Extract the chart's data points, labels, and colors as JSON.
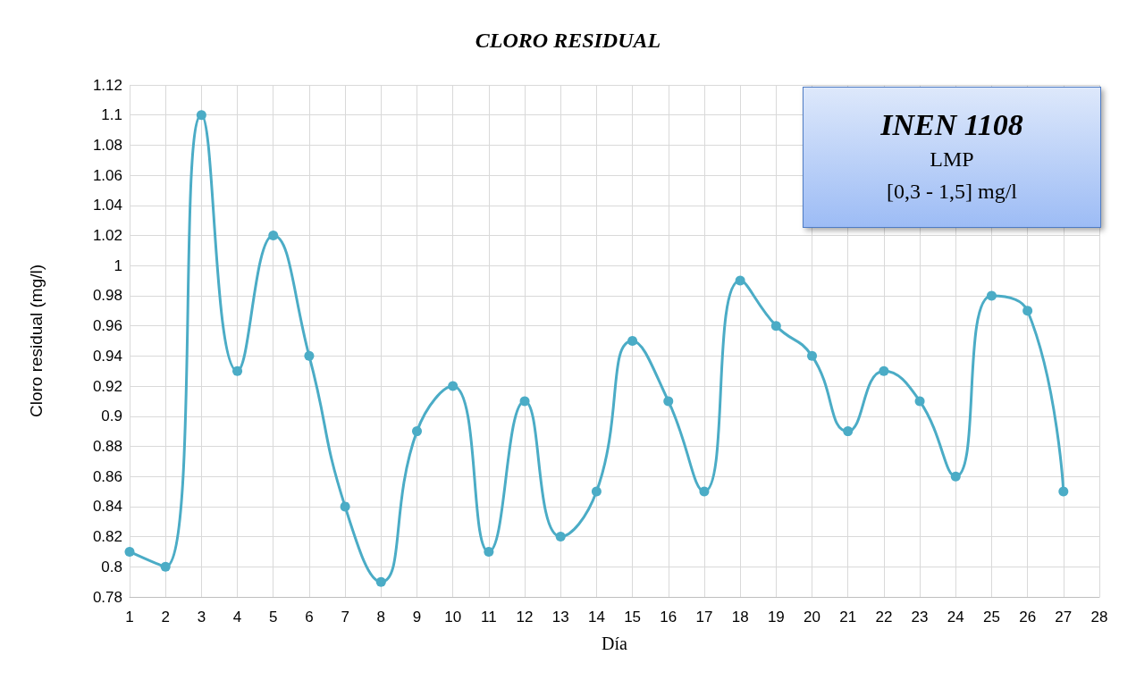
{
  "chart_data": {
    "type": "line",
    "title": "CLORO RESIDUAL",
    "xlabel": "Día",
    "ylabel": "Cloro residual (mg/l)",
    "x": [
      1,
      2,
      3,
      4,
      5,
      6,
      7,
      8,
      9,
      10,
      11,
      12,
      13,
      14,
      15,
      16,
      17,
      18,
      19,
      20,
      21,
      22,
      23,
      24,
      25,
      26,
      27
    ],
    "series": [
      {
        "color": "#4bacc6",
        "values": [
          0.81,
          0.8,
          1.1,
          0.93,
          1.02,
          0.94,
          0.84,
          0.79,
          0.89,
          0.92,
          0.81,
          0.91,
          0.82,
          0.85,
          0.95,
          0.91,
          0.85,
          0.99,
          0.96,
          0.94,
          0.89,
          0.93,
          0.91,
          0.86,
          0.98,
          0.97,
          0.85
        ]
      }
    ],
    "xlim": [
      1,
      28
    ],
    "xticks": [
      1,
      2,
      3,
      4,
      5,
      6,
      7,
      8,
      9,
      10,
      11,
      12,
      13,
      14,
      15,
      16,
      17,
      18,
      19,
      20,
      21,
      22,
      23,
      24,
      25,
      26,
      27,
      28
    ],
    "ylim": [
      0.78,
      1.12
    ],
    "yticks": [
      0.78,
      0.8,
      0.82,
      0.84,
      0.86,
      0.88,
      0.9,
      0.92,
      0.94,
      0.96,
      0.98,
      1,
      1.02,
      1.04,
      1.06,
      1.08,
      1.1,
      1.12
    ],
    "annotations": [
      "INEN 1108",
      "LMP",
      "[0,3 - 1,5] mg/l"
    ],
    "grid": true,
    "marker": "circle",
    "line_style": "solid"
  }
}
